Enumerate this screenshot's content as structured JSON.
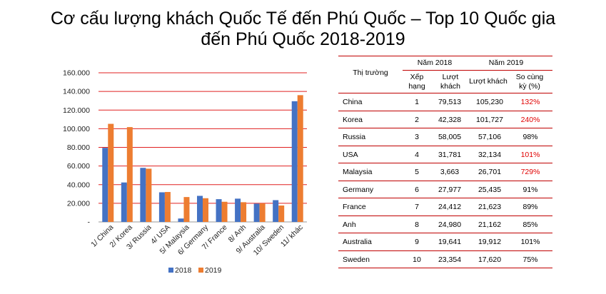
{
  "title_line1": "Cơ cấu lượng khách Quốc Tế đến Phú Quốc – Top 10 Quốc gia",
  "title_line2": "đến Phú Quốc 2018-2019",
  "colors": {
    "series2018": "#4472c4",
    "series2019": "#ed7d31",
    "gridline": "#e02020",
    "highlight": "#e00000"
  },
  "chart_data": {
    "type": "bar",
    "categories": [
      "1/ China",
      "2/ Korea",
      "3/ Russia",
      "4/ USA",
      "5/ Malaysia",
      "6/ Germany",
      "7/ France",
      "8/ Anh",
      "9/ Australia",
      "10/ Sweden",
      "11/ khác"
    ],
    "series": [
      {
        "name": "2018",
        "values": [
          79513,
          42328,
          58005,
          31781,
          3663,
          27977,
          24412,
          24980,
          19641,
          23354,
          129500
        ]
      },
      {
        "name": "2019",
        "values": [
          105230,
          101727,
          57106,
          32134,
          26701,
          25435,
          21623,
          21162,
          19912,
          17620,
          136000
        ]
      }
    ],
    "ylim": [
      0,
      160000
    ],
    "yticks": [
      "-",
      "20.000",
      "40.000",
      "60.000",
      "80.000",
      "100.000",
      "120.000",
      "140.000",
      "160.000"
    ],
    "grid": true,
    "legend_placement": "bottom"
  },
  "table": {
    "col_market": "Thị trường",
    "year2018": "Năm 2018",
    "year2019": "Năm 2019",
    "col_rank": "Xếp hạng",
    "col_visits2018": "Lượt khách",
    "col_visits2019": "Lượt khách",
    "col_compare": "So cùng kỳ (%)",
    "rows": [
      {
        "market": "China",
        "rank": "1",
        "v2018": "79,513",
        "v2019": "105,230",
        "pct": "132%",
        "highlight": true
      },
      {
        "market": "Korea",
        "rank": "2",
        "v2018": "42,328",
        "v2019": "101,727",
        "pct": "240%",
        "highlight": true
      },
      {
        "market": "Russia",
        "rank": "3",
        "v2018": "58,005",
        "v2019": "57,106",
        "pct": "98%",
        "highlight": false
      },
      {
        "market": "USA",
        "rank": "4",
        "v2018": "31,781",
        "v2019": "32,134",
        "pct": "101%",
        "highlight": true
      },
      {
        "market": "Malaysia",
        "rank": "5",
        "v2018": "3,663",
        "v2019": "26,701",
        "pct": "729%",
        "highlight": true
      },
      {
        "market": "Germany",
        "rank": "6",
        "v2018": "27,977",
        "v2019": "25,435",
        "pct": "91%",
        "highlight": false
      },
      {
        "market": "France",
        "rank": "7",
        "v2018": "24,412",
        "v2019": "21,623",
        "pct": "89%",
        "highlight": false
      },
      {
        "market": "Anh",
        "rank": "8",
        "v2018": "24,980",
        "v2019": "21,162",
        "pct": "85%",
        "highlight": false
      },
      {
        "market": "Australia",
        "rank": "9",
        "v2018": "19,641",
        "v2019": "19,912",
        "pct": "101%",
        "highlight": false
      },
      {
        "market": "Sweden",
        "rank": "10",
        "v2018": "23,354",
        "v2019": "17,620",
        "pct": "75%",
        "highlight": false
      }
    ]
  }
}
